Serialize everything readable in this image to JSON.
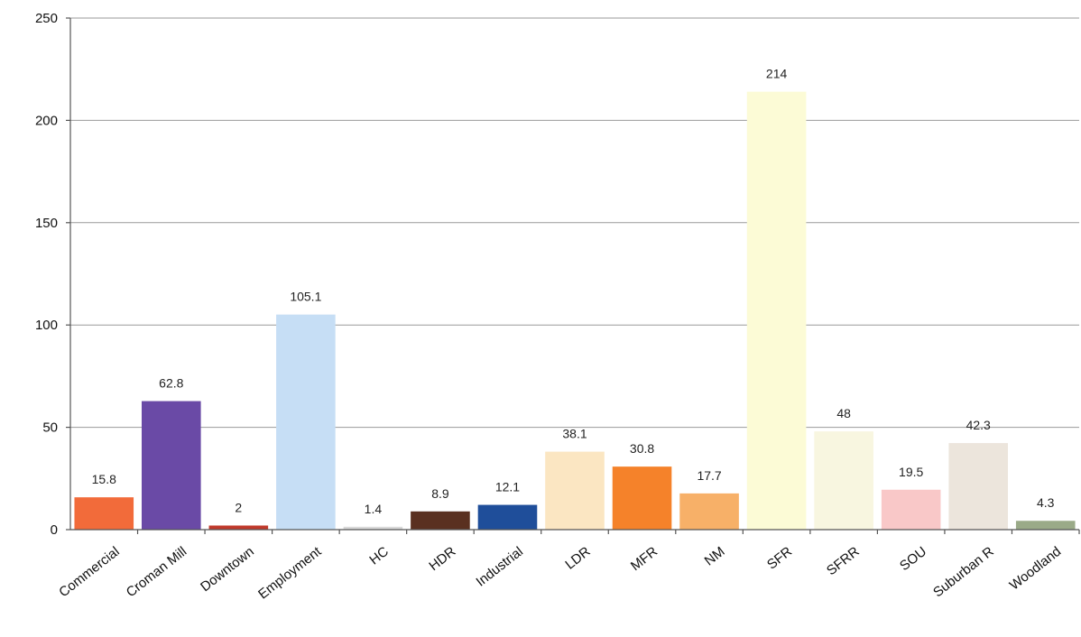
{
  "chart_data": {
    "type": "bar",
    "title": "",
    "xlabel": "",
    "ylabel": "",
    "ylim": [
      0,
      250
    ],
    "yticks": [
      0,
      50,
      100,
      150,
      200,
      250
    ],
    "grid": true,
    "legend": "none",
    "categories": [
      "Commercial",
      "Croman Mill",
      "Downtown",
      "Employment",
      "HC",
      "HDR",
      "Industrial",
      "LDR",
      "MFR",
      "NM",
      "SFR",
      "SFRR",
      "SOU",
      "Suburban R",
      "Woodland"
    ],
    "values": [
      15.8,
      62.8,
      2,
      105.1,
      1.4,
      8.9,
      12.1,
      38.1,
      30.8,
      17.7,
      214,
      48,
      19.5,
      42.3,
      4.3
    ],
    "data_labels": [
      "15.8",
      "62.8",
      "2",
      "105.1",
      "1.4",
      "8.9",
      "12.1",
      "38.1",
      "30.8",
      "17.7",
      "214",
      "48",
      "19.5",
      "42.3",
      "4.3"
    ],
    "colors": [
      "#f26b3a",
      "#6a4aa6",
      "#c0392b",
      "#c6def5",
      "#d9d9d9",
      "#5a3020",
      "#1f4e9a",
      "#fbe6c2",
      "#f5822a",
      "#f7b068",
      "#fcfbd6",
      "#f8f6e0",
      "#f9c8c8",
      "#ece5dc",
      "#9aaa88"
    ]
  }
}
